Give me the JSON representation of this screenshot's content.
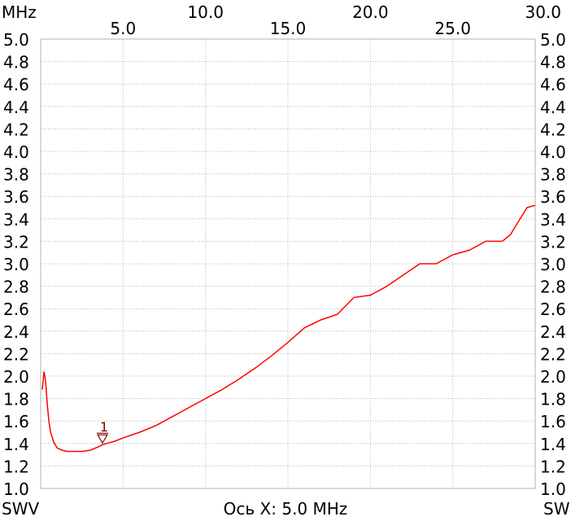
{
  "chart_data": {
    "type": "line",
    "x_unit_label": "MHz",
    "xlim": [
      0.0,
      30.0
    ],
    "ylim": [
      1.0,
      5.0
    ],
    "x_ticks_top_row": [
      "10.0",
      "20.0",
      "30.0"
    ],
    "x_ticks_second_row": [
      "5.0",
      "15.0",
      "25.0"
    ],
    "y_ticks": [
      "5.0",
      "4.8",
      "4.6",
      "4.4",
      "4.2",
      "4.0",
      "3.8",
      "3.6",
      "3.4",
      "3.2",
      "3.0",
      "2.8",
      "2.6",
      "2.4",
      "2.2",
      "2.0",
      "1.8",
      "1.6",
      "1.4",
      "1.2",
      "1.0"
    ],
    "left_axis_label": "SWV",
    "right_axis_label": "SW",
    "bottom_caption": "Ось X: 5.0 MHz",
    "grid": true,
    "series": [
      {
        "color": "#ff0000",
        "x": [
          0.1,
          0.2,
          0.3,
          0.4,
          0.5,
          0.6,
          0.8,
          1.0,
          1.3,
          1.6,
          2.0,
          2.5,
          3.0,
          3.5,
          3.75,
          4.0,
          4.5,
          5.0,
          6.0,
          7.0,
          8.0,
          9.0,
          10.0,
          11.0,
          12.0,
          13.0,
          14.0,
          15.0,
          16.0,
          17.0,
          18.0,
          19.0,
          20.0,
          21.0,
          22.0,
          23.0,
          24.0,
          25.0,
          26.0,
          27.0,
          28.0,
          28.5,
          29.0,
          29.5,
          30.0
        ],
        "y": [
          1.88,
          2.04,
          1.95,
          1.75,
          1.6,
          1.5,
          1.41,
          1.36,
          1.34,
          1.33,
          1.33,
          1.33,
          1.34,
          1.37,
          1.39,
          1.4,
          1.42,
          1.45,
          1.5,
          1.56,
          1.64,
          1.72,
          1.8,
          1.88,
          1.97,
          2.07,
          2.18,
          2.3,
          2.43,
          2.5,
          2.55,
          2.7,
          2.72,
          2.8,
          2.9,
          3.0,
          3.0,
          3.08,
          3.12,
          3.2,
          3.2,
          3.26,
          3.38,
          3.5,
          3.52
        ]
      }
    ],
    "markers": [
      {
        "label": "1",
        "x": 3.75,
        "y": 1.39,
        "color": "#800000"
      }
    ]
  }
}
